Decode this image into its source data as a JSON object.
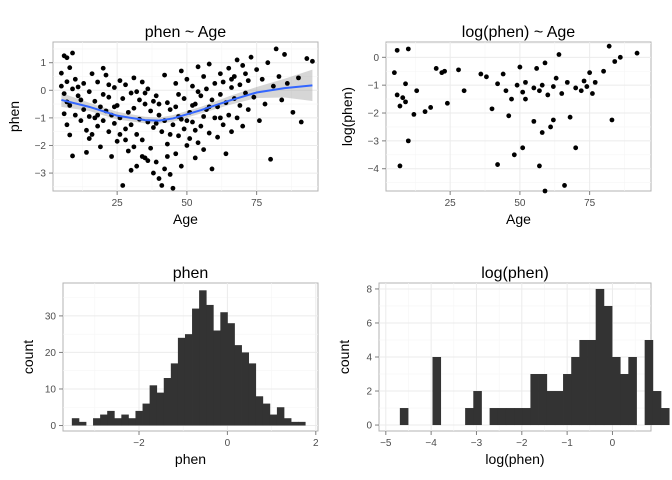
{
  "chart_data": [
    {
      "id": "phen_vs_age",
      "type": "scatter",
      "title": "phen ~ Age",
      "xlabel": "Age",
      "ylabel": "phen",
      "xlim": [
        2,
        97
      ],
      "ylim": [
        -3.65,
        1.75
      ],
      "xticks": [
        25,
        50,
        75
      ],
      "yticks": [
        -3,
        -2,
        -1,
        0,
        1
      ],
      "grid": true,
      "colors": {
        "points": "#000000",
        "smooth": "#3366ff",
        "band": "#999999"
      },
      "points": [
        [
          5,
          0.62
        ],
        [
          6,
          1.25
        ],
        [
          7,
          1.18
        ],
        [
          8,
          0.82
        ],
        [
          9,
          1.35
        ],
        [
          5,
          0.15
        ],
        [
          6,
          -0.12
        ],
        [
          7,
          0.31
        ],
        [
          8,
          -0.55
        ],
        [
          9,
          0.05
        ],
        [
          6,
          -0.85
        ],
        [
          7,
          -1.25
        ],
        [
          8,
          -1.62
        ],
        [
          9,
          -2.38
        ],
        [
          7,
          -0.42
        ],
        [
          10,
          -0.9
        ],
        [
          10,
          0.4
        ],
        [
          11,
          -0.2
        ],
        [
          11,
          0.12
        ],
        [
          12,
          -1.1
        ],
        [
          12,
          -0.35
        ],
        [
          13,
          0.25
        ],
        [
          13,
          -0.7
        ],
        [
          14,
          -1.45
        ],
        [
          14,
          -2.25
        ],
        [
          15,
          -0.05
        ],
        [
          15,
          -0.95
        ],
        [
          16,
          0.6
        ],
        [
          16,
          -1.6
        ],
        [
          17,
          -0.4
        ],
        [
          17,
          -1.0
        ],
        [
          18,
          0.3
        ],
        [
          18,
          -1.3
        ],
        [
          19,
          -0.6
        ],
        [
          19,
          -2.05
        ],
        [
          20,
          -0.15
        ],
        [
          20,
          -1.1
        ],
        [
          21,
          0.55
        ],
        [
          21,
          -0.75
        ],
        [
          22,
          -1.5
        ],
        [
          22,
          -0.25
        ],
        [
          23,
          -0.9
        ],
        [
          23,
          -2.4
        ],
        [
          24,
          0.1
        ],
        [
          24,
          -1.2
        ],
        [
          25,
          -0.55
        ],
        [
          25,
          -1.85
        ],
        [
          26,
          0.35
        ],
        [
          26,
          -1.0
        ],
        [
          27,
          -3.45
        ],
        [
          27,
          -0.3
        ],
        [
          28,
          -1.4
        ],
        [
          28,
          0.2
        ],
        [
          29,
          -0.8
        ],
        [
          29,
          -2.2
        ],
        [
          30,
          -0.1
        ],
        [
          30,
          -1.25
        ],
        [
          31,
          0.45
        ],
        [
          31,
          -0.65
        ],
        [
          32,
          -1.6
        ],
        [
          32,
          -2.75
        ],
        [
          33,
          -0.35
        ],
        [
          33,
          -1.05
        ],
        [
          34,
          0.3
        ],
        [
          34,
          -1.8
        ],
        [
          35,
          -0.5
        ],
        [
          35,
          -2.45
        ],
        [
          36,
          -1.15
        ],
        [
          36,
          0.05
        ],
        [
          37,
          -0.75
        ],
        [
          37,
          -2.1
        ],
        [
          38,
          -3.0
        ],
        [
          38,
          -1.35
        ],
        [
          39,
          -0.2
        ],
        [
          39,
          -2.6
        ],
        [
          40,
          -3.2
        ],
        [
          40,
          -0.9
        ],
        [
          41,
          -3.45
        ],
        [
          41,
          -1.5
        ],
        [
          42,
          0.55
        ],
        [
          42,
          -2.85
        ],
        [
          43,
          -0.45
        ],
        [
          43,
          -1.95
        ],
        [
          44,
          -3.05
        ],
        [
          44,
          -0.7
        ],
        [
          45,
          -1.25
        ],
        [
          45,
          -3.55
        ],
        [
          46,
          0.25
        ],
        [
          46,
          -2.3
        ],
        [
          47,
          -0.95
        ],
        [
          47,
          -1.65
        ],
        [
          48,
          0.7
        ],
        [
          48,
          -2.75
        ],
        [
          49,
          -0.3
        ],
        [
          49,
          -1.4
        ],
        [
          50,
          -2.0
        ],
        [
          50,
          0.4
        ],
        [
          51,
          -0.8
        ],
        [
          51,
          -1.75
        ],
        [
          52,
          0.15
        ],
        [
          52,
          -1.15
        ],
        [
          53,
          -2.45
        ],
        [
          53,
          -0.5
        ],
        [
          54,
          0.85
        ],
        [
          54,
          -1.9
        ],
        [
          55,
          -0.2
        ],
        [
          55,
          -1.3
        ],
        [
          56,
          0.5
        ],
        [
          56,
          -2.15
        ],
        [
          57,
          -0.7
        ],
        [
          57,
          0.05
        ],
        [
          58,
          -1.55
        ],
        [
          58,
          0.95
        ],
        [
          59,
          -0.35
        ],
        [
          59,
          -2.85
        ],
        [
          60,
          -1.0
        ],
        [
          60,
          0.25
        ],
        [
          61,
          -0.6
        ],
        [
          61,
          -1.7
        ],
        [
          62,
          0.6
        ],
        [
          62,
          -0.15
        ],
        [
          63,
          -1.25
        ],
        [
          63,
          0.3
        ],
        [
          64,
          -0.45
        ],
        [
          64,
          -2.3
        ],
        [
          65,
          0.8
        ],
        [
          65,
          -0.9
        ],
        [
          66,
          0.1
        ],
        [
          66,
          -1.5
        ],
        [
          67,
          0.5
        ],
        [
          67,
          -0.3
        ],
        [
          68,
          1.1
        ],
        [
          68,
          -1.0
        ],
        [
          69,
          -0.55
        ],
        [
          69,
          0.2
        ],
        [
          70,
          0.9
        ],
        [
          70,
          -1.3
        ],
        [
          71,
          -0.1
        ],
        [
          71,
          0.6
        ],
        [
          72,
          -0.7
        ],
        [
          72,
          0.35
        ],
        [
          73,
          1.2
        ],
        [
          74,
          -0.25
        ],
        [
          75,
          0.75
        ],
        [
          76,
          -1.1
        ],
        [
          77,
          0.4
        ],
        [
          78,
          -0.5
        ],
        [
          79,
          1.0
        ],
        [
          80,
          -2.5
        ],
        [
          81,
          0.15
        ],
        [
          82,
          1.5
        ],
        [
          83,
          0.5
        ],
        [
          84,
          -0.35
        ],
        [
          85,
          1.3
        ],
        [
          86,
          0.25
        ],
        [
          88,
          -0.8
        ],
        [
          90,
          0.45
        ],
        [
          91,
          -1.15
        ],
        [
          93,
          1.15
        ],
        [
          95,
          1.05
        ],
        [
          20,
          0.8
        ],
        [
          24,
          -0.6
        ],
        [
          28,
          -1.8
        ],
        [
          32,
          -0.05
        ],
        [
          36,
          -2.55
        ],
        [
          40,
          -0.5
        ],
        [
          44,
          -1.6
        ],
        [
          48,
          -1.05
        ],
        [
          52,
          -0.55
        ],
        [
          56,
          -0.95
        ],
        [
          30,
          -2.9
        ],
        [
          34,
          -2.4
        ],
        [
          38,
          -0.4
        ],
        [
          42,
          -1.1
        ],
        [
          46,
          -0.6
        ],
        [
          50,
          -1.1
        ],
        [
          54,
          -0.05
        ],
        [
          58,
          -0.6
        ],
        [
          62,
          -1.0
        ],
        [
          66,
          0.4
        ],
        [
          15,
          -1.75
        ],
        [
          18,
          -0.9
        ],
        [
          22,
          0.2
        ],
        [
          26,
          -1.6
        ],
        [
          31,
          -2.05
        ],
        [
          35,
          -0.1
        ],
        [
          39,
          -1.2
        ],
        [
          43,
          -2.4
        ],
        [
          47,
          -0.15
        ],
        [
          53,
          -1.45
        ]
      ],
      "smooth": [
        [
          5,
          -0.35
        ],
        [
          15,
          -0.6
        ],
        [
          25,
          -0.92
        ],
        [
          35,
          -1.08
        ],
        [
          40,
          -1.1
        ],
        [
          45,
          -1.02
        ],
        [
          55,
          -0.72
        ],
        [
          65,
          -0.38
        ],
        [
          75,
          -0.08
        ],
        [
          85,
          0.08
        ],
        [
          95,
          0.18
        ]
      ],
      "band_upper": [
        [
          5,
          -0.1
        ],
        [
          15,
          -0.45
        ],
        [
          25,
          -0.78
        ],
        [
          35,
          -0.96
        ],
        [
          40,
          -0.99
        ],
        [
          45,
          -0.9
        ],
        [
          55,
          -0.6
        ],
        [
          65,
          -0.22
        ],
        [
          75,
          0.12
        ],
        [
          85,
          0.42
        ],
        [
          95,
          0.75
        ]
      ],
      "band_lower": [
        [
          5,
          -0.6
        ],
        [
          15,
          -0.75
        ],
        [
          25,
          -1.06
        ],
        [
          35,
          -1.2
        ],
        [
          40,
          -1.21
        ],
        [
          45,
          -1.14
        ],
        [
          55,
          -0.84
        ],
        [
          65,
          -0.54
        ],
        [
          75,
          -0.28
        ],
        [
          85,
          -0.26
        ],
        [
          95,
          -0.39
        ]
      ]
    },
    {
      "id": "logphen_vs_age",
      "type": "scatter",
      "title": "log(phen) ~ Age",
      "xlabel": "Age",
      "ylabel": "log(phen)",
      "xlim": [
        2,
        97
      ],
      "ylim": [
        -4.8,
        0.55
      ],
      "xticks": [
        25,
        50,
        75
      ],
      "yticks": [
        -4,
        -3,
        -2,
        -1,
        0
      ],
      "grid": true,
      "colors": {
        "points": "#000000"
      },
      "points": [
        [
          5,
          -0.55
        ],
        [
          6,
          0.25
        ],
        [
          6,
          -1.35
        ],
        [
          7,
          -1.75
        ],
        [
          7,
          -3.9
        ],
        [
          8,
          -1.45
        ],
        [
          9,
          -0.95
        ],
        [
          9,
          -1.6
        ],
        [
          10,
          0.3
        ],
        [
          10,
          -3.0
        ],
        [
          12,
          -2.05
        ],
        [
          13,
          -1.2
        ],
        [
          16,
          -1.95
        ],
        [
          18,
          -1.8
        ],
        [
          20,
          -0.4
        ],
        [
          22,
          -0.55
        ],
        [
          23,
          -0.5
        ],
        [
          24,
          -1.65
        ],
        [
          28,
          -0.45
        ],
        [
          30,
          -1.2
        ],
        [
          36,
          -0.6
        ],
        [
          38,
          -0.7
        ],
        [
          40,
          -1.85
        ],
        [
          42,
          -0.95
        ],
        [
          42,
          -3.85
        ],
        [
          44,
          -0.6
        ],
        [
          45,
          -1.2
        ],
        [
          46,
          -2.1
        ],
        [
          47,
          -1.5
        ],
        [
          48,
          -3.5
        ],
        [
          49,
          -1.0
        ],
        [
          50,
          -0.35
        ],
        [
          51,
          -1.25
        ],
        [
          51,
          -3.25
        ],
        [
          52,
          -1.5
        ],
        [
          52,
          -0.9
        ],
        [
          55,
          -1.1
        ],
        [
          55,
          -2.3
        ],
        [
          56,
          -0.4
        ],
        [
          57,
          -1.2
        ],
        [
          57,
          -3.9
        ],
        [
          58,
          -1.0
        ],
        [
          58,
          -2.7
        ],
        [
          59,
          -0.2
        ],
        [
          59,
          -4.8
        ],
        [
          60,
          -1.35
        ],
        [
          61,
          -2.5
        ],
        [
          62,
          -1.05
        ],
        [
          62,
          -2.25
        ],
        [
          63,
          -0.75
        ],
        [
          64,
          0.1
        ],
        [
          65,
          -1.3
        ],
        [
          66,
          -4.6
        ],
        [
          67,
          -0.9
        ],
        [
          68,
          -2.15
        ],
        [
          70,
          -1.1
        ],
        [
          70,
          -3.25
        ],
        [
          71,
          -4.9
        ],
        [
          72,
          -1.2
        ],
        [
          73,
          -0.85
        ],
        [
          74,
          -1.05
        ],
        [
          75,
          -0.55
        ],
        [
          76,
          -1.3
        ],
        [
          77,
          -0.9
        ],
        [
          80,
          -0.5
        ],
        [
          82,
          0.4
        ],
        [
          83,
          -2.25
        ],
        [
          84,
          -0.15
        ],
        [
          86,
          0.0
        ],
        [
          92,
          0.15
        ]
      ]
    },
    {
      "id": "phen_hist",
      "type": "bar",
      "title": "phen",
      "xlabel": "phen",
      "ylabel": "count",
      "xlim": [
        -3.72,
        2.05
      ],
      "ylim": [
        -1.5,
        39
      ],
      "xticks": [
        -2,
        0,
        2
      ],
      "yticks": [
        0,
        10,
        20,
        30
      ],
      "grid": true,
      "colors": {
        "bars": "#333333"
      },
      "bin_start": -3.52,
      "bin_width": 0.16,
      "values": [
        2,
        1,
        0,
        2,
        3,
        4,
        2,
        3,
        2,
        4,
        6,
        11,
        9,
        13,
        17,
        24,
        25,
        32,
        37,
        33,
        26,
        31,
        28,
        22,
        20,
        17,
        8,
        6,
        3,
        5,
        2,
        1,
        1
      ]
    },
    {
      "id": "logphen_hist",
      "type": "bar",
      "title": "log(phen)",
      "xlabel": "log(phen)",
      "ylabel": "count",
      "xlim": [
        -5.15,
        0.85
      ],
      "ylim": [
        -0.35,
        8.35
      ],
      "xticks": [
        -5,
        -4,
        -3,
        -2,
        -1,
        0
      ],
      "yticks": [
        0,
        2,
        4,
        6,
        8
      ],
      "grid": true,
      "colors": {
        "bars": "#333333"
      },
      "bin_start": -4.87,
      "bin_width": 0.18,
      "values": [
        0,
        1,
        0,
        0,
        0,
        4,
        0,
        0,
        0,
        1,
        2,
        0,
        1,
        1,
        1,
        1,
        1,
        3,
        3,
        2,
        2,
        3,
        4,
        5,
        5,
        8,
        7,
        4,
        3,
        4,
        0,
        5,
        2,
        1
      ]
    }
  ]
}
